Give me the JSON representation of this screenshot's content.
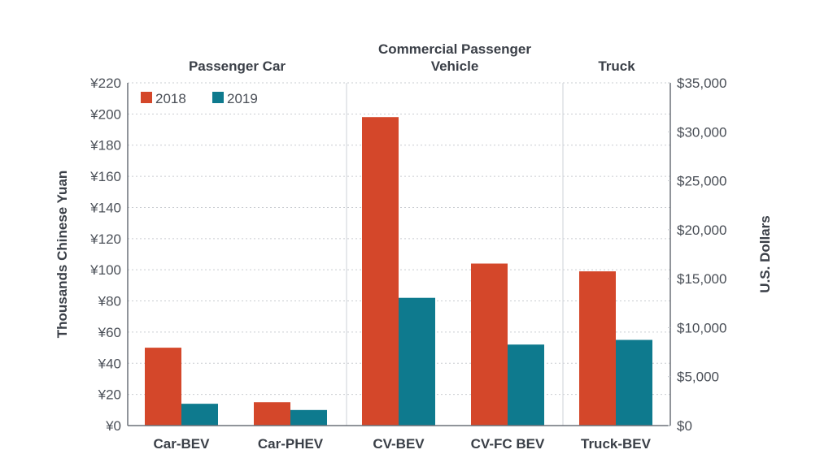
{
  "chart_data": {
    "type": "bar",
    "title": "",
    "categories": [
      "Car-BEV",
      "Car-PHEV",
      "CV-BEV",
      "CV-FC BEV",
      "Truck-BEV"
    ],
    "series": [
      {
        "name": "2018",
        "color": "#d4472a",
        "values": [
          50,
          15,
          198,
          104,
          99
        ]
      },
      {
        "name": "2019",
        "color": "#0e7a8e",
        "values": [
          14,
          10,
          82,
          52,
          55
        ]
      }
    ],
    "groups": [
      {
        "label_lines": [
          "Passenger Car"
        ],
        "categories": [
          "Car-BEV",
          "Car-PHEV"
        ]
      },
      {
        "label_lines": [
          "Commercial Passenger",
          "Vehicle"
        ],
        "categories": [
          "CV-BEV",
          "CV-FC BEV"
        ]
      },
      {
        "label_lines": [
          "Truck"
        ],
        "categories": [
          "Truck-BEV"
        ]
      }
    ],
    "ylabel": "Thousands Chinese Yuan",
    "ylim": [
      0,
      220
    ],
    "yticks": [
      0,
      20,
      40,
      60,
      80,
      100,
      120,
      140,
      160,
      180,
      200,
      220
    ],
    "ytick_labels": [
      "¥0",
      "¥20",
      "¥40",
      "¥60",
      "¥80",
      "¥100",
      "¥120",
      "¥140",
      "¥160",
      "¥180",
      "¥200",
      "¥220"
    ],
    "y2label": "U.S. Dollars",
    "y2lim": [
      0,
      35000
    ],
    "y2ticks": [
      0,
      5000,
      10000,
      15000,
      20000,
      25000,
      30000,
      35000
    ],
    "y2tick_labels": [
      "$0",
      "$5,000",
      "$10,000",
      "$15,000",
      "$20,000",
      "$25,000",
      "$30,000",
      "$35,000"
    ],
    "grid": true,
    "legend": {
      "position": "top-left",
      "entries": [
        "2018",
        "2019"
      ]
    }
  }
}
